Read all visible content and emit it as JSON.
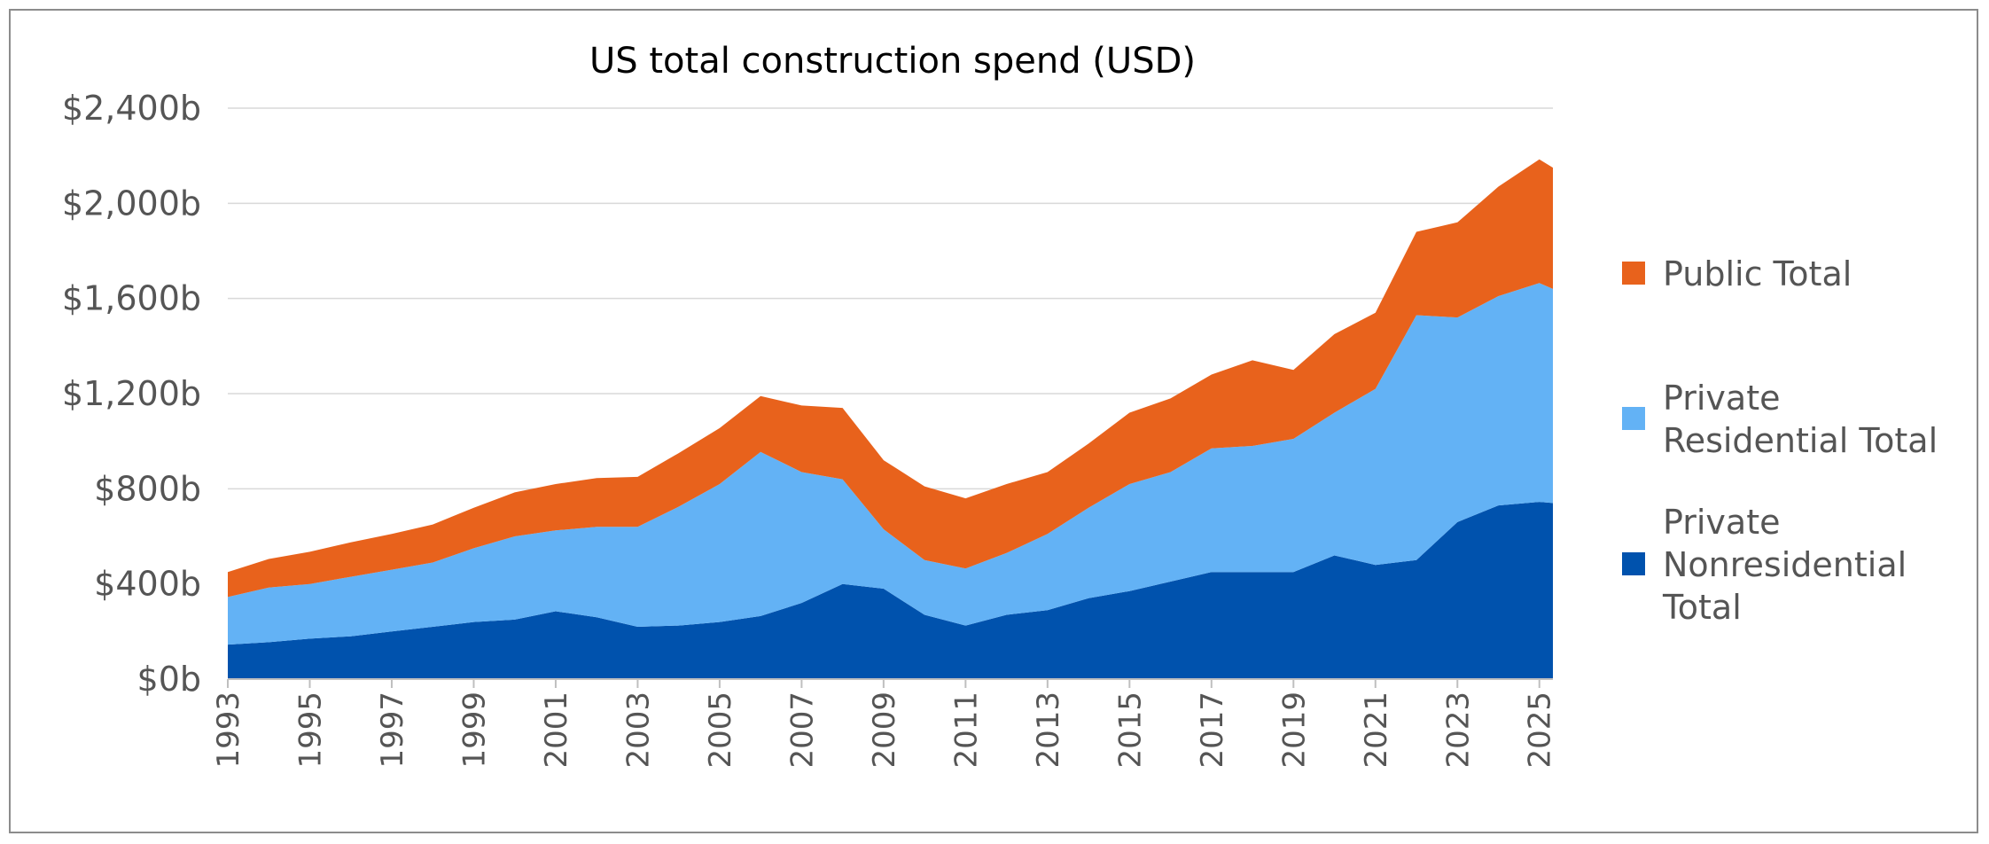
{
  "chart_data": {
    "type": "area",
    "stacked": true,
    "title": "US total construction spend (USD)",
    "xlabel": "",
    "ylabel": "",
    "xlim": [
      1993,
      2025.33
    ],
    "ylim": [
      0,
      2400
    ],
    "y_ticks": [
      0,
      400,
      800,
      1200,
      1600,
      2000,
      2400
    ],
    "y_tick_labels": [
      "$0b",
      "$400b",
      "$800b",
      "$1,200b",
      "$1,600b",
      "$2,000b",
      "$2,400b"
    ],
    "x_ticks": [
      1993,
      1995,
      1997,
      1999,
      2001,
      2003,
      2005,
      2007,
      2009,
      2011,
      2013,
      2015,
      2017,
      2019,
      2021,
      2023,
      2025
    ],
    "x_tick_labels": [
      "1993",
      "1995",
      "1997",
      "1999",
      "2001",
      "2003",
      "2005",
      "2007",
      "2009",
      "2011",
      "2013",
      "2015",
      "2017",
      "2019",
      "2021",
      "2023",
      "2025"
    ],
    "gridlines": true,
    "legend_position": "right",
    "legend_order": [
      2,
      1,
      0
    ],
    "x": [
      1993,
      1994,
      1995,
      1996,
      1997,
      1998,
      1999,
      2000,
      2001,
      2002,
      2003,
      2004,
      2005,
      2006,
      2007,
      2008,
      2009,
      2010,
      2011,
      2012,
      2013,
      2014,
      2015,
      2016,
      2017,
      2018,
      2019,
      2020,
      2021,
      2022,
      2023,
      2024,
      2025,
      2025.33
    ],
    "series": [
      {
        "name": "Private Nonresidential Total",
        "legend_label": [
          "Private",
          "Nonresidential",
          "Total"
        ],
        "color": "#0052ad",
        "values": [
          145,
          155,
          170,
          180,
          200,
          220,
          240,
          250,
          285,
          260,
          220,
          225,
          240,
          265,
          320,
          400,
          380,
          270,
          225,
          270,
          290,
          340,
          370,
          410,
          450,
          450,
          450,
          520,
          480,
          500,
          660,
          730,
          745,
          740
        ]
      },
      {
        "name": "Private Residential Total",
        "legend_label": [
          "Private",
          "Residential Total"
        ],
        "color": "#63b2f5",
        "values": [
          200,
          230,
          230,
          250,
          260,
          270,
          310,
          350,
          340,
          380,
          420,
          500,
          580,
          690,
          550,
          440,
          250,
          230,
          240,
          260,
          320,
          380,
          450,
          460,
          520,
          530,
          560,
          600,
          740,
          1030,
          860,
          880,
          920,
          900
        ]
      },
      {
        "name": "Public Total",
        "legend_label": [
          "Public Total"
        ],
        "color": "#e8621c",
        "values": [
          105,
          120,
          135,
          145,
          150,
          160,
          170,
          185,
          195,
          205,
          210,
          225,
          235,
          235,
          280,
          300,
          290,
          310,
          295,
          290,
          260,
          270,
          300,
          310,
          310,
          360,
          290,
          330,
          320,
          350,
          400,
          460,
          520,
          510
        ]
      }
    ]
  }
}
